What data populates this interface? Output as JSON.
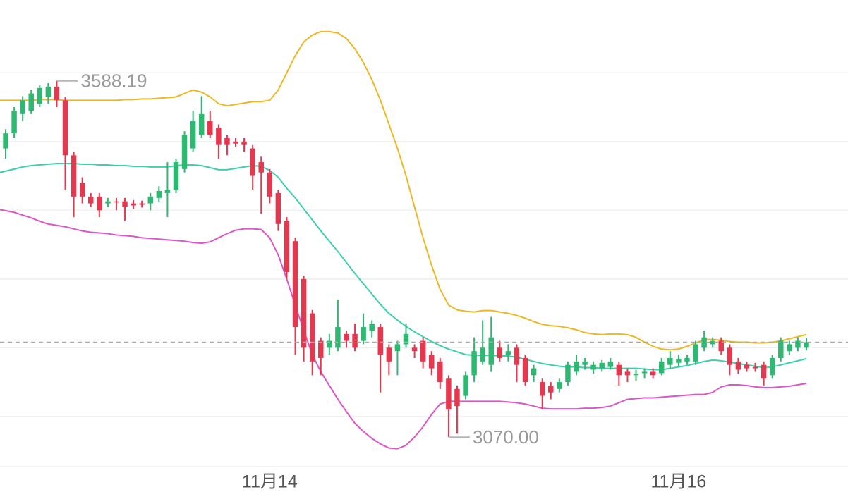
{
  "chart_data": {
    "type": "candlestick",
    "categories": [
      null,
      null,
      null,
      null,
      null,
      null,
      null,
      null,
      null,
      null,
      null,
      null,
      null,
      null,
      null,
      null,
      null,
      null,
      null,
      null,
      null,
      null,
      null,
      null,
      null,
      null,
      null,
      null,
      null,
      null,
      null,
      "11月14",
      null,
      null,
      null,
      null,
      null,
      null,
      null,
      null,
      null,
      null,
      null,
      null,
      null,
      null,
      null,
      null,
      null,
      null,
      null,
      null,
      null,
      null,
      null,
      null,
      null,
      null,
      null,
      null,
      null,
      null,
      null,
      null,
      null,
      null,
      null,
      null,
      null,
      null,
      null,
      null,
      null,
      null,
      null,
      null,
      null,
      null,
      null,
      "11月16",
      null,
      null,
      null,
      null,
      null,
      null,
      null,
      null,
      null,
      null,
      null,
      null,
      null,
      null,
      null
    ],
    "open": [
      3490,
      3512,
      3540,
      3545,
      3555,
      3565,
      3580,
      3560,
      3480,
      3440,
      3420,
      3420,
      3410,
      3413,
      3413,
      3410,
      3410,
      3410,
      3418,
      3425,
      3430,
      3460,
      3490,
      3510,
      3530,
      3520,
      3505,
      3500,
      3500,
      3490,
      3470,
      3455,
      3425,
      3385,
      3355,
      3300,
      3250,
      3210,
      3200,
      3200,
      3220,
      3220,
      3210,
      3225,
      3230,
      3200,
      3195,
      3205,
      3200,
      3210,
      3190,
      3180,
      3155,
      3140,
      3130,
      3160,
      3180,
      3175,
      3200,
      3190,
      3200,
      3185,
      3160,
      3150,
      3145,
      3140,
      3150,
      3165,
      3175,
      3168,
      3170,
      3172,
      3175,
      3165,
      3160,
      3163,
      3165,
      3163,
      3175,
      3178,
      3180,
      3180,
      3200,
      3205,
      3210,
      3200,
      3180,
      3175,
      3172,
      3175,
      3160,
      3185,
      3195,
      3200,
      3200
    ],
    "high": [
      3518,
      3550,
      3566,
      3575,
      3582,
      3585,
      3588.19,
      3565,
      3485,
      3448,
      3425,
      3425,
      3418,
      3418,
      3418,
      3415,
      3414,
      3425,
      3435,
      3470,
      3475,
      3515,
      3545,
      3566,
      3545,
      3525,
      3510,
      3505,
      3505,
      3495,
      3478,
      3460,
      3430,
      3390,
      3360,
      3305,
      3255,
      3215,
      3220,
      3270,
      3225,
      3235,
      3250,
      3240,
      3235,
      3205,
      3210,
      3235,
      3205,
      3215,
      3195,
      3185,
      3160,
      3145,
      3165,
      3215,
      3240,
      3245,
      3210,
      3205,
      3205,
      3190,
      3175,
      3155,
      3150,
      3155,
      3180,
      3190,
      3185,
      3180,
      3182,
      3185,
      3180,
      3170,
      3168,
      3170,
      3170,
      3185,
      3195,
      3190,
      3190,
      3210,
      3225,
      3215,
      3215,
      3205,
      3185,
      3180,
      3178,
      3180,
      3190,
      3215,
      3210,
      3215,
      3214
    ],
    "low": [
      3475,
      3505,
      3530,
      3540,
      3550,
      3555,
      3550,
      3430,
      3390,
      3410,
      3405,
      3390,
      3405,
      3400,
      3385,
      3402,
      3404,
      3400,
      3412,
      3390,
      3425,
      3455,
      3485,
      3505,
      3505,
      3475,
      3480,
      3492,
      3485,
      3430,
      3395,
      3410,
      3370,
      3300,
      3190,
      3180,
      3160,
      3160,
      3190,
      3195,
      3200,
      3195,
      3205,
      3215,
      3135,
      3160,
      3160,
      3200,
      3185,
      3170,
      3160,
      3140,
      3070,
      3075,
      3125,
      3150,
      3175,
      3165,
      3180,
      3180,
      3150,
      3145,
      3150,
      3110,
      3125,
      3135,
      3145,
      3160,
      3168,
      3162,
      3165,
      3168,
      3145,
      3150,
      3152,
      3155,
      3155,
      3160,
      3170,
      3172,
      3175,
      3175,
      3195,
      3200,
      3190,
      3160,
      3162,
      3165,
      3165,
      3145,
      3155,
      3180,
      3190,
      3195,
      3196
    ],
    "close": [
      3512,
      3545,
      3560,
      3570,
      3578,
      3580,
      3560,
      3480,
      3420,
      3420,
      3410,
      3400,
      3413,
      3412,
      3405,
      3407,
      3408,
      3420,
      3428,
      3430,
      3470,
      3510,
      3530,
      3540,
      3510,
      3495,
      3495,
      3497,
      3495,
      3450,
      3455,
      3420,
      3380,
      3310,
      3230,
      3200,
      3180,
      3185,
      3210,
      3230,
      3210,
      3200,
      3230,
      3235,
      3190,
      3180,
      3205,
      3220,
      3195,
      3180,
      3170,
      3150,
      3110,
      3115,
      3160,
      3195,
      3200,
      3215,
      3185,
      3195,
      3175,
      3150,
      3170,
      3130,
      3135,
      3150,
      3175,
      3180,
      3180,
      3175,
      3178,
      3180,
      3160,
      3160,
      3162,
      3165,
      3160,
      3180,
      3185,
      3183,
      3185,
      3205,
      3215,
      3210,
      3195,
      3175,
      3168,
      3170,
      3170,
      3155,
      3185,
      3210,
      3205,
      3210,
      3208
    ],
    "up_color": "#2eb872",
    "down_color": "#e5384f",
    "series": [
      {
        "color": "#ebb826",
        "values": [
          3560,
          3560,
          3560,
          3560,
          3561,
          3561,
          3561,
          3560,
          3560,
          3560,
          3560,
          3560,
          3560,
          3560,
          3561,
          3561,
          3562,
          3562,
          3563,
          3564,
          3565,
          3570,
          3575,
          3572,
          3565,
          3555,
          3552,
          3554,
          3556,
          3558,
          3558,
          3560,
          3575,
          3600,
          3625,
          3645,
          3655,
          3660,
          3660,
          3658,
          3650,
          3635,
          3615,
          3590,
          3560,
          3525,
          3490,
          3450,
          3405,
          3360,
          3320,
          3285,
          3262,
          3255,
          3253,
          3252,
          3254,
          3254,
          3252,
          3250,
          3247,
          3243,
          3238,
          3234,
          3232,
          3231,
          3229,
          3226,
          3222,
          3220,
          3219,
          3220,
          3220,
          3219,
          3215,
          3208,
          3202,
          3198,
          3197,
          3198,
          3202,
          3207,
          3212,
          3212,
          3211,
          3209,
          3208,
          3208,
          3207,
          3207,
          3208,
          3210,
          3213,
          3216,
          3219
        ]
      },
      {
        "color": "#3fcfae",
        "values": [
          3455,
          3460,
          3463,
          3465,
          3466,
          3467,
          3468,
          3468,
          3468,
          3467,
          3467,
          3466,
          3466,
          3465,
          3465,
          3464,
          3464,
          3463,
          3463,
          3463,
          3465,
          3466,
          3466,
          3465,
          3462,
          3459,
          3459,
          3461,
          3463,
          3465,
          3464,
          3458,
          3448,
          3432,
          3418,
          3402,
          3386,
          3370,
          3355,
          3340,
          3324,
          3308,
          3293,
          3278,
          3263,
          3250,
          3240,
          3231,
          3223,
          3216,
          3209,
          3203,
          3198,
          3194,
          3190,
          3189,
          3189,
          3189,
          3188,
          3188,
          3186,
          3183,
          3180,
          3177,
          3175,
          3173,
          3172,
          3172,
          3171,
          3171,
          3170,
          3170,
          3170,
          3170,
          3170,
          3169,
          3168,
          3168,
          3170,
          3172,
          3174,
          3177,
          3180,
          3182,
          3181,
          3179,
          3177,
          3175,
          3173,
          3171,
          3172,
          3175,
          3178,
          3181,
          3184
        ]
      },
      {
        "color": "#d958c6",
        "values": [
          3401,
          3397,
          3393,
          3389,
          3384,
          3380,
          3378,
          3376,
          3373,
          3370,
          3368,
          3367,
          3366,
          3364,
          3363,
          3362,
          3360,
          3359,
          3358,
          3357,
          3356,
          3355,
          3353,
          3352,
          3354,
          3360,
          3366,
          3371,
          3373,
          3373,
          3372,
          3360,
          3335,
          3300,
          3262,
          3225,
          3190,
          3165,
          3145,
          3125,
          3107,
          3090,
          3078,
          3068,
          3060,
          3054,
          3053,
          3058,
          3070,
          3085,
          3103,
          3118,
          3122,
          3122,
          3122,
          3122,
          3122,
          3122,
          3122,
          3121,
          3120,
          3118,
          3115,
          3112,
          3111,
          3111,
          3111,
          3111,
          3112,
          3112,
          3113,
          3115,
          3120,
          3125,
          3126,
          3127,
          3127,
          3128,
          3129,
          3130,
          3131,
          3132,
          3132,
          3135,
          3143,
          3146,
          3146,
          3145,
          3143,
          3142,
          3142,
          3143,
          3144,
          3146,
          3148
        ]
      }
    ],
    "annotations": [
      {
        "value": 3588.19,
        "label": "3588.19"
      },
      {
        "value": 3070,
        "label": "3070.00"
      }
    ],
    "ylim": [
      3027,
      3706
    ],
    "yticks": [
      3100,
      3200,
      3300,
      3400,
      3500,
      3600
    ],
    "grid": true
  }
}
